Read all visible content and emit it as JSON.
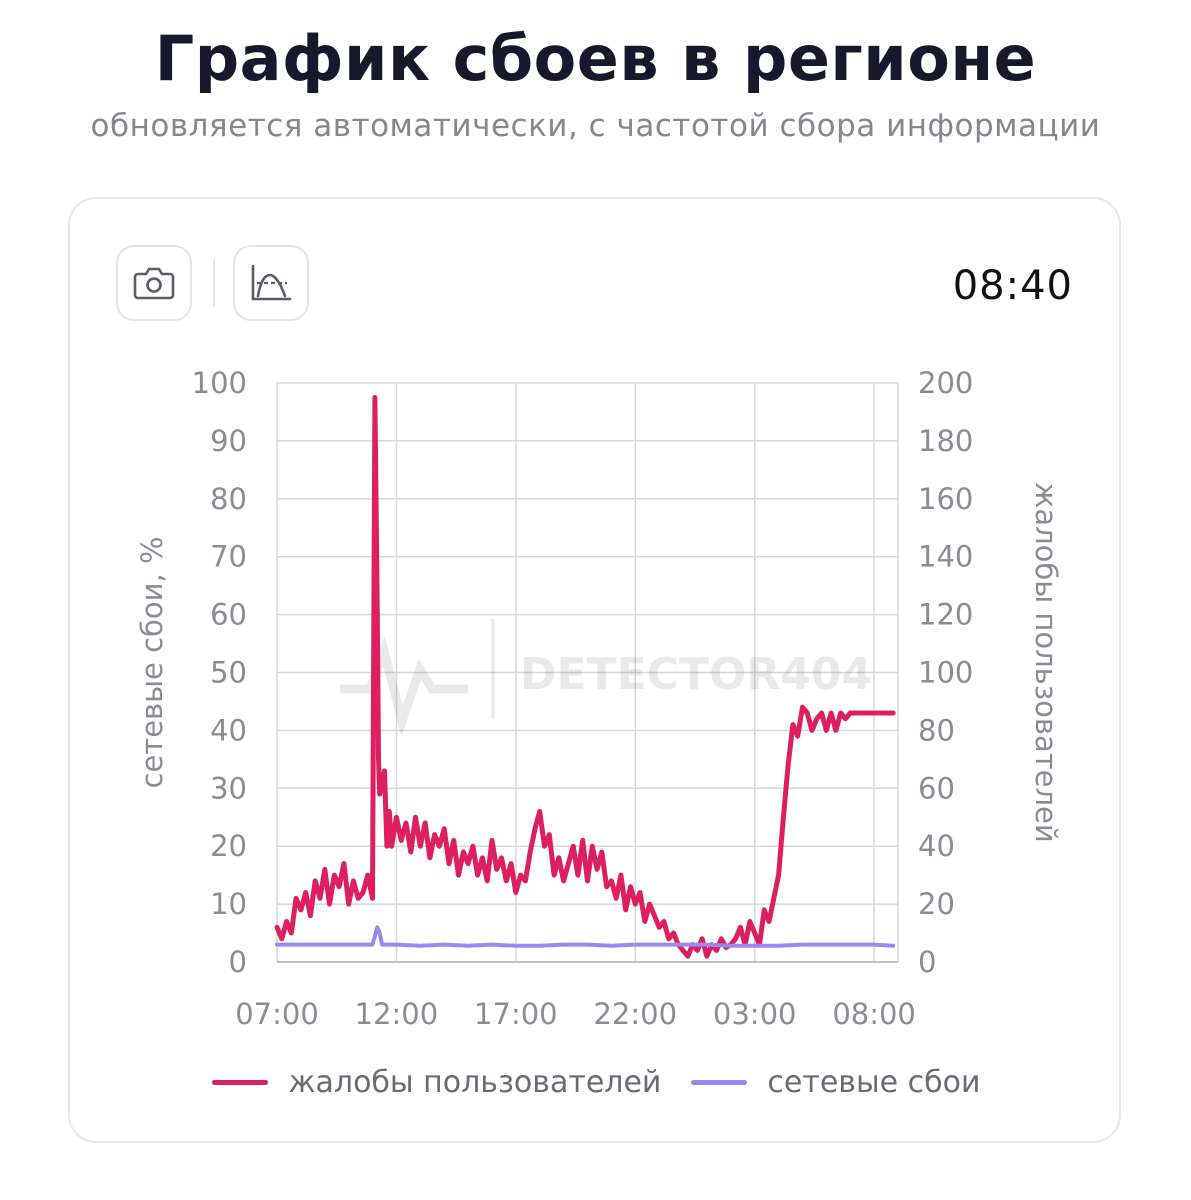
{
  "header": {
    "title": "График сбоев в регионе",
    "subtitle": "обновляется автоматически, с частотой сбора информации"
  },
  "toolbar": {
    "camera_icon": "camera-icon",
    "chart_mode_icon": "chart-curve-icon",
    "time": "08:40"
  },
  "colors": {
    "complaints": "#de1f5f",
    "network": "#9a88f2",
    "grid": "#d6d7dc",
    "text_muted": "#8a8c94"
  },
  "chart_data": {
    "type": "line",
    "watermark": "DETECTOR404",
    "x_tick_labels": [
      "07:00",
      "12:00",
      "17:00",
      "22:00",
      "03:00",
      "08:00"
    ],
    "x_unit": "hours since 07:00",
    "xlim": [
      0,
      26
    ],
    "left_axis": {
      "label": "сетевые сбои, %",
      "ylim": [
        0,
        100
      ],
      "ticks": [
        0,
        10,
        20,
        30,
        40,
        50,
        60,
        70,
        80,
        90,
        100
      ]
    },
    "right_axis": {
      "label": "жалобы пользователей",
      "ylim": [
        0,
        200
      ],
      "ticks": [
        0,
        20,
        40,
        60,
        80,
        100,
        120,
        140,
        160,
        180,
        200
      ]
    },
    "grid": true,
    "legend_position": "bottom",
    "series": [
      {
        "name": "жалобы пользователей",
        "axis": "right",
        "x": [
          0,
          0.2,
          0.4,
          0.6,
          0.8,
          1.0,
          1.2,
          1.4,
          1.6,
          1.8,
          2.0,
          2.2,
          2.4,
          2.6,
          2.8,
          3.0,
          3.2,
          3.4,
          3.6,
          3.8,
          4.0,
          4.1,
          4.2,
          4.25,
          4.3,
          4.4,
          4.5,
          4.6,
          4.7,
          4.8,
          5.0,
          5.2,
          5.4,
          5.6,
          5.8,
          6.0,
          6.2,
          6.4,
          6.6,
          6.8,
          7.0,
          7.2,
          7.4,
          7.6,
          7.8,
          8.0,
          8.2,
          8.4,
          8.6,
          8.8,
          9.0,
          9.2,
          9.4,
          9.6,
          9.8,
          10.0,
          10.2,
          10.4,
          10.6,
          10.8,
          11.0,
          11.2,
          11.4,
          11.6,
          11.8,
          12.0,
          12.2,
          12.4,
          12.6,
          12.8,
          13.0,
          13.2,
          13.4,
          13.6,
          13.8,
          14.0,
          14.2,
          14.4,
          14.6,
          14.8,
          15.0,
          15.2,
          15.4,
          15.6,
          15.8,
          16.0,
          16.2,
          16.4,
          16.6,
          16.8,
          17.0,
          17.2,
          17.4,
          17.6,
          17.8,
          18.0,
          18.2,
          18.4,
          18.6,
          18.8,
          19.0,
          19.2,
          19.4,
          19.6,
          19.8,
          20.0,
          20.2,
          20.4,
          20.6,
          20.8,
          21.0,
          21.2,
          21.4,
          21.6,
          21.8,
          22.0,
          22.2,
          22.4,
          22.6,
          22.8,
          23.0,
          23.2,
          23.4,
          23.6,
          23.8,
          24.0,
          24.2,
          24.4,
          24.6,
          24.8,
          25.0,
          25.2,
          25.4,
          25.6,
          25.8
        ],
        "values": [
          12,
          8,
          14,
          10,
          22,
          18,
          24,
          16,
          28,
          22,
          32,
          20,
          30,
          26,
          34,
          20,
          28,
          22,
          24,
          30,
          22,
          195,
          120,
          70,
          58,
          62,
          66,
          40,
          52,
          40,
          50,
          42,
          48,
          38,
          50,
          40,
          48,
          36,
          44,
          40,
          46,
          34,
          42,
          30,
          38,
          34,
          40,
          30,
          36,
          28,
          42,
          32,
          36,
          28,
          34,
          24,
          30,
          28,
          38,
          46,
          52,
          40,
          44,
          30,
          36,
          28,
          34,
          40,
          30,
          42,
          28,
          40,
          32,
          38,
          26,
          28,
          22,
          30,
          18,
          26,
          20,
          24,
          14,
          20,
          16,
          12,
          14,
          8,
          10,
          6,
          4,
          2,
          6,
          4,
          8,
          2,
          6,
          4,
          8,
          5,
          6,
          8,
          12,
          6,
          14,
          10,
          6,
          18,
          14,
          22,
          30,
          50,
          68,
          82,
          78,
          88,
          86,
          80,
          84,
          86,
          80,
          86,
          80,
          86,
          84,
          86,
          86,
          86,
          86,
          86,
          86,
          86,
          86,
          86,
          86
        ]
      },
      {
        "name": "сетевые сбои",
        "axis": "left",
        "x": [
          0,
          1,
          2,
          3,
          4,
          4.2,
          4.3,
          4.4,
          4.6,
          5,
          6,
          7,
          8,
          9,
          10,
          11,
          12,
          13,
          14,
          15,
          16,
          17,
          18,
          19,
          20,
          21,
          22,
          23,
          24,
          25,
          25.8
        ],
        "values": [
          3,
          3,
          3,
          3,
          3,
          6,
          5,
          3,
          3,
          3,
          2.8,
          3,
          2.8,
          3,
          2.8,
          2.8,
          3,
          3,
          2.8,
          3,
          3,
          3,
          3,
          2.8,
          2.8,
          2.8,
          3,
          3,
          3,
          3,
          2.8
        ]
      }
    ]
  }
}
